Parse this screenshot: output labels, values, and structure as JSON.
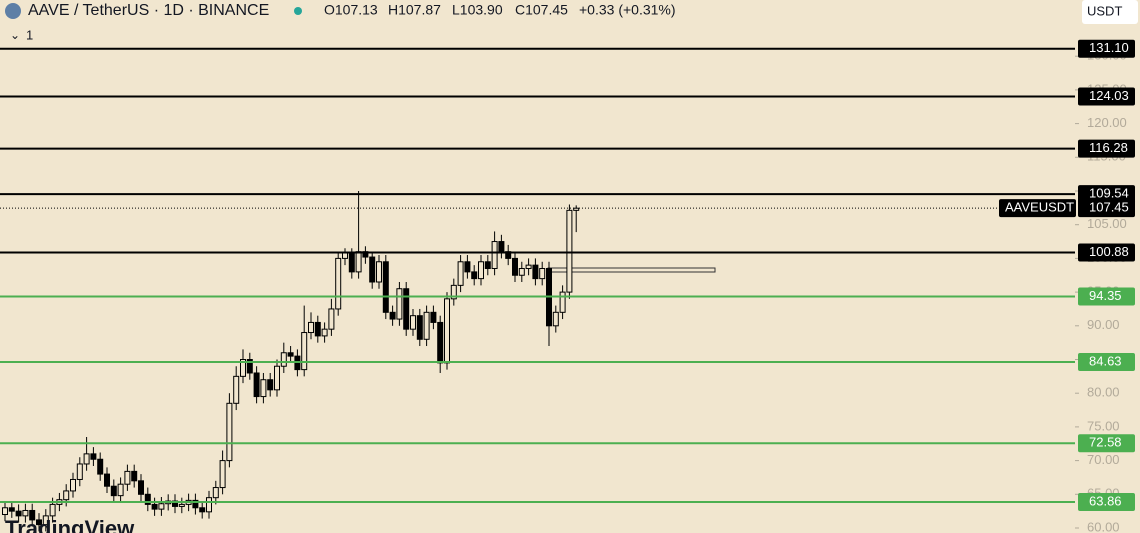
{
  "header": {
    "symbol": "AAVE / TetherUS · 1D · BINANCE",
    "ohlc": [
      "O107.13",
      "H107.87",
      "L103.90",
      "C107.45"
    ],
    "change": "+0.33 (+0.31%)",
    "currency": "USDT",
    "indicator": "1",
    "watermark": "TradingView"
  },
  "chart_data": {
    "type": "candlestick",
    "symbol_label": "AAVEUSDT",
    "ylim": [
      60,
      131.8
    ],
    "yticks": [
      {
        "value": 60,
        "label": "60.00"
      },
      {
        "value": 65,
        "label": "65.00"
      },
      {
        "value": 70,
        "label": "70.00"
      },
      {
        "value": 75,
        "label": "75.00"
      },
      {
        "value": 80,
        "label": "80.00"
      },
      {
        "value": 85,
        "label": "85.00"
      },
      {
        "value": 90,
        "label": "90.00"
      },
      {
        "value": 95,
        "label": "95.00"
      },
      {
        "value": 100,
        "label": "100.00"
      },
      {
        "value": 105,
        "label": "105.00"
      },
      {
        "value": 110,
        "label": "110.00"
      },
      {
        "value": 115,
        "label": "115.00"
      },
      {
        "value": 120,
        "label": "120.00"
      },
      {
        "value": 125,
        "label": "125.00"
      },
      {
        "value": 130,
        "label": "130.00"
      }
    ],
    "levels": [
      {
        "value": 131.1,
        "label": "131.10",
        "color": "#000000"
      },
      {
        "value": 124.03,
        "label": "124.03",
        "color": "#000000"
      },
      {
        "value": 116.28,
        "label": "116.28",
        "color": "#000000"
      },
      {
        "value": 109.54,
        "label": "109.54",
        "color": "#000000"
      },
      {
        "value": 100.88,
        "label": "100.88",
        "color": "#000000"
      },
      {
        "value": 94.35,
        "label": "94.35",
        "color": "#4caf50"
      },
      {
        "value": 84.63,
        "label": "84.63",
        "color": "#4caf50"
      },
      {
        "value": 72.58,
        "label": "72.58",
        "color": "#4caf50"
      },
      {
        "value": 63.86,
        "label": "63.86",
        "color": "#4caf50"
      }
    ],
    "last_price": {
      "value": 107.45,
      "label": "107.45"
    },
    "up_color": "#f1e6cf",
    "down_color": "#000000",
    "open": [
      62.0,
      63,
      62.5,
      61.8,
      62.6,
      61.2,
      60.5,
      61.8,
      63.5,
      64.2,
      65.5,
      67.2,
      69.5,
      71.0,
      70.2,
      68.0,
      66.2,
      64.8,
      66.5,
      68.4,
      67.0,
      65.0,
      63.5,
      62.8,
      63.6,
      64.0,
      63.2,
      63.5,
      64.1,
      63.0,
      62.4,
      64.5,
      66.0,
      70.0,
      78.5,
      82.5,
      85.0,
      83.0,
      79.5,
      82.0,
      80.5,
      84.0,
      86.0,
      85.5,
      83.5,
      89.0,
      90.5,
      88.5,
      89.5,
      92.5,
      100.0,
      100.8,
      98.0,
      101.0,
      100.2,
      96.5,
      99.5,
      92.0,
      91.0,
      95.5,
      89.5,
      91.5,
      88.0,
      92.0,
      90.5,
      84.5,
      94.0,
      96.0,
      99.5,
      98.0,
      97.0,
      99.5,
      98.5,
      102.5,
      101.0,
      100.0,
      97.5,
      98.5,
      99.0,
      97.0,
      98.5,
      90.0,
      92.0,
      95.0,
      107.13
    ],
    "high": [
      64.0,
      64.0,
      63.5,
      63.6,
      63.6,
      62.2,
      62.8,
      64.5,
      65.2,
      66.5,
      68.2,
      70.5,
      73.5,
      72.0,
      71.2,
      69.0,
      67.2,
      67.5,
      69.4,
      69.4,
      68.0,
      66.0,
      64.5,
      64.6,
      65.0,
      65.0,
      64.5,
      65.1,
      65.1,
      64.0,
      65.5,
      67.0,
      71.5,
      80.0,
      84.0,
      86.5,
      86.0,
      84.0,
      83.0,
      83.0,
      85.0,
      87.5,
      87.0,
      86.5,
      93.0,
      92.0,
      91.5,
      90.5,
      94.0,
      101.0,
      101.5,
      101.5,
      110.0,
      101.8,
      101.0,
      100.5,
      100.5,
      93.0,
      96.5,
      96.5,
      92.5,
      92.5,
      93.0,
      93.0,
      91.5,
      95.0,
      97.0,
      100.5,
      100.5,
      99.0,
      100.5,
      100.5,
      104.0,
      103.5,
      102.0,
      101.0,
      99.5,
      100.0,
      100.0,
      99.5,
      99.5,
      93.0,
      96.0,
      108.0,
      107.87
    ],
    "low": [
      61.0,
      61.5,
      60.8,
      60.8,
      60.2,
      59.5,
      59.5,
      60.8,
      62.5,
      63.2,
      64.5,
      66.2,
      68.5,
      69.2,
      67.0,
      65.2,
      63.8,
      63.8,
      65.5,
      66.0,
      64.0,
      62.5,
      61.8,
      61.8,
      62.6,
      62.2,
      62.2,
      62.5,
      62.0,
      61.4,
      61.4,
      63.5,
      65.0,
      69.0,
      77.5,
      81.5,
      82.0,
      78.5,
      78.5,
      79.5,
      79.5,
      83.0,
      84.5,
      82.5,
      82.5,
      88.0,
      87.5,
      87.5,
      88.5,
      91.5,
      99.0,
      97.0,
      97.0,
      99.2,
      95.5,
      95.5,
      91.0,
      90.0,
      90.0,
      88.5,
      88.5,
      87.0,
      87.0,
      89.5,
      83.0,
      83.5,
      93.0,
      95.0,
      97.0,
      96.0,
      96.0,
      97.5,
      97.5,
      100.0,
      99.0,
      96.5,
      96.5,
      97.5,
      96.0,
      96.0,
      87.0,
      89.0,
      91.0,
      94.0,
      103.9
    ],
    "close": [
      63,
      62.5,
      61.8,
      62.6,
      61.2,
      60.5,
      61.8,
      63.5,
      64.2,
      65.5,
      67.2,
      69.5,
      71.0,
      70.2,
      68.0,
      66.2,
      64.8,
      66.5,
      68.4,
      67.0,
      65.0,
      63.5,
      62.8,
      63.6,
      64.0,
      63.2,
      63.5,
      64.1,
      63.0,
      62.4,
      64.5,
      66.0,
      70.0,
      78.5,
      82.5,
      85.0,
      83.0,
      79.5,
      82.0,
      80.5,
      84.0,
      86.0,
      85.5,
      83.5,
      89.0,
      90.5,
      88.5,
      89.5,
      92.5,
      100.0,
      100.8,
      98.0,
      101.0,
      100.2,
      96.5,
      99.5,
      92.0,
      91.0,
      95.5,
      89.5,
      91.5,
      88.0,
      92.0,
      90.5,
      84.5,
      94.0,
      96.0,
      99.5,
      98.0,
      97.0,
      99.5,
      98.5,
      102.5,
      101.0,
      100.0,
      97.5,
      98.5,
      99.0,
      97.0,
      98.5,
      90.0,
      92.0,
      95.0,
      107.13,
      107.45
    ]
  }
}
